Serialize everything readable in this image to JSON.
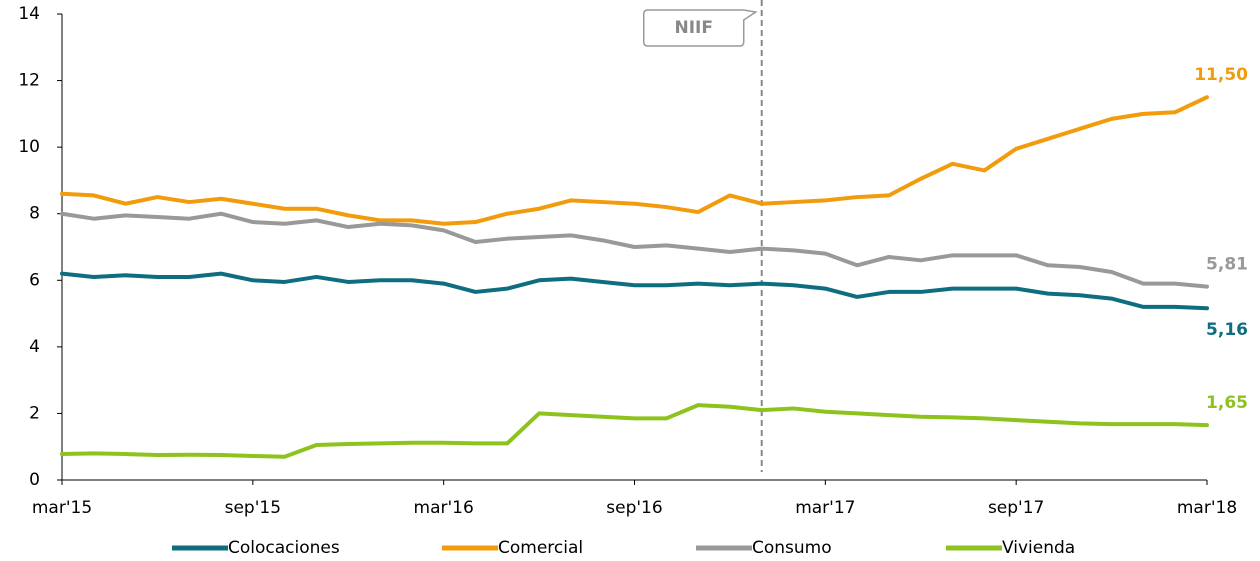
{
  "chart_data": {
    "type": "line",
    "categories": [
      "mar'15",
      null,
      null,
      null,
      null,
      null,
      "sep'15",
      null,
      null,
      null,
      null,
      null,
      "mar'16",
      null,
      null,
      null,
      null,
      null,
      "sep'16",
      null,
      null,
      null,
      null,
      null,
      "mar'17",
      null,
      null,
      null,
      null,
      null,
      "sep'17",
      null,
      null,
      null,
      null,
      null,
      "mar'18"
    ],
    "ylim": [
      0,
      14
    ],
    "yticks": [
      0,
      2,
      4,
      6,
      8,
      10,
      12,
      14
    ],
    "grid": false,
    "legend": "bottom",
    "annotation": {
      "label": "NIIF",
      "x": 22
    },
    "series": [
      {
        "name": "Colocaciones",
        "color": "#0e6e80",
        "values": [
          6.2,
          6.1,
          6.15,
          6.1,
          6.1,
          6.2,
          6.0,
          5.95,
          6.1,
          5.95,
          6.0,
          6.0,
          5.9,
          5.65,
          5.75,
          6.0,
          6.05,
          5.95,
          5.85,
          5.85,
          5.9,
          5.85,
          5.9,
          5.85,
          5.75,
          5.5,
          5.65,
          5.65,
          5.75,
          5.75,
          5.75,
          5.6,
          5.55,
          5.45,
          5.2,
          5.2,
          5.16
        ],
        "value_labels": [
          null,
          null,
          null,
          null,
          null,
          null,
          null,
          null,
          null,
          null,
          null,
          null,
          null,
          null,
          null,
          null,
          null,
          null,
          null,
          null,
          null,
          null,
          null,
          null,
          null,
          null,
          null,
          null,
          null,
          null,
          null,
          null,
          null,
          null,
          null,
          null,
          "5,16"
        ]
      },
      {
        "name": "Comercial",
        "color": "#f29b0c",
        "values": [
          8.6,
          8.55,
          8.3,
          8.5,
          8.35,
          8.45,
          8.3,
          8.15,
          8.15,
          7.95,
          7.8,
          7.8,
          7.7,
          7.75,
          8.0,
          8.15,
          8.4,
          8.35,
          8.3,
          8.2,
          8.05,
          8.55,
          8.3,
          8.35,
          8.4,
          8.5,
          8.55,
          9.05,
          9.5,
          9.3,
          9.95,
          10.25,
          10.55,
          10.85,
          11.0,
          11.05,
          11.5
        ],
        "value_labels": [
          null,
          null,
          null,
          null,
          null,
          null,
          null,
          null,
          null,
          null,
          null,
          null,
          null,
          null,
          null,
          null,
          null,
          null,
          null,
          null,
          null,
          null,
          null,
          null,
          null,
          null,
          null,
          null,
          null,
          null,
          null,
          null,
          null,
          null,
          null,
          null,
          "11,50"
        ]
      },
      {
        "name": "Consumo",
        "color": "#999999",
        "values": [
          8.0,
          7.85,
          7.95,
          7.9,
          7.85,
          8.0,
          7.75,
          7.7,
          7.8,
          7.6,
          7.7,
          7.65,
          7.5,
          7.15,
          7.25,
          7.3,
          7.35,
          7.2,
          7.0,
          7.05,
          6.95,
          6.85,
          6.95,
          6.9,
          6.8,
          6.45,
          6.7,
          6.6,
          6.75,
          6.75,
          6.75,
          6.45,
          6.4,
          6.25,
          5.9,
          5.9,
          5.81
        ],
        "value_labels": [
          null,
          null,
          null,
          null,
          null,
          null,
          null,
          null,
          null,
          null,
          null,
          null,
          null,
          null,
          null,
          null,
          null,
          null,
          null,
          null,
          null,
          null,
          null,
          null,
          null,
          null,
          null,
          null,
          null,
          null,
          null,
          null,
          null,
          null,
          null,
          null,
          "5,81"
        ]
      },
      {
        "name": "Vivienda",
        "color": "#8dc21f",
        "values": [
          0.78,
          0.8,
          0.78,
          0.75,
          0.76,
          0.75,
          0.72,
          0.7,
          1.05,
          1.08,
          1.1,
          1.12,
          1.12,
          1.1,
          1.1,
          2.0,
          1.95,
          1.9,
          1.85,
          1.85,
          2.25,
          2.2,
          2.1,
          2.15,
          2.05,
          2.0,
          1.95,
          1.9,
          1.88,
          1.85,
          1.8,
          1.75,
          1.7,
          1.68,
          1.68,
          1.68,
          1.65
        ],
        "value_labels": [
          null,
          null,
          null,
          null,
          null,
          null,
          null,
          null,
          null,
          null,
          null,
          null,
          null,
          null,
          null,
          null,
          null,
          null,
          null,
          null,
          null,
          null,
          null,
          null,
          null,
          null,
          null,
          null,
          null,
          null,
          null,
          null,
          null,
          null,
          null,
          null,
          "1,65"
        ]
      }
    ]
  }
}
